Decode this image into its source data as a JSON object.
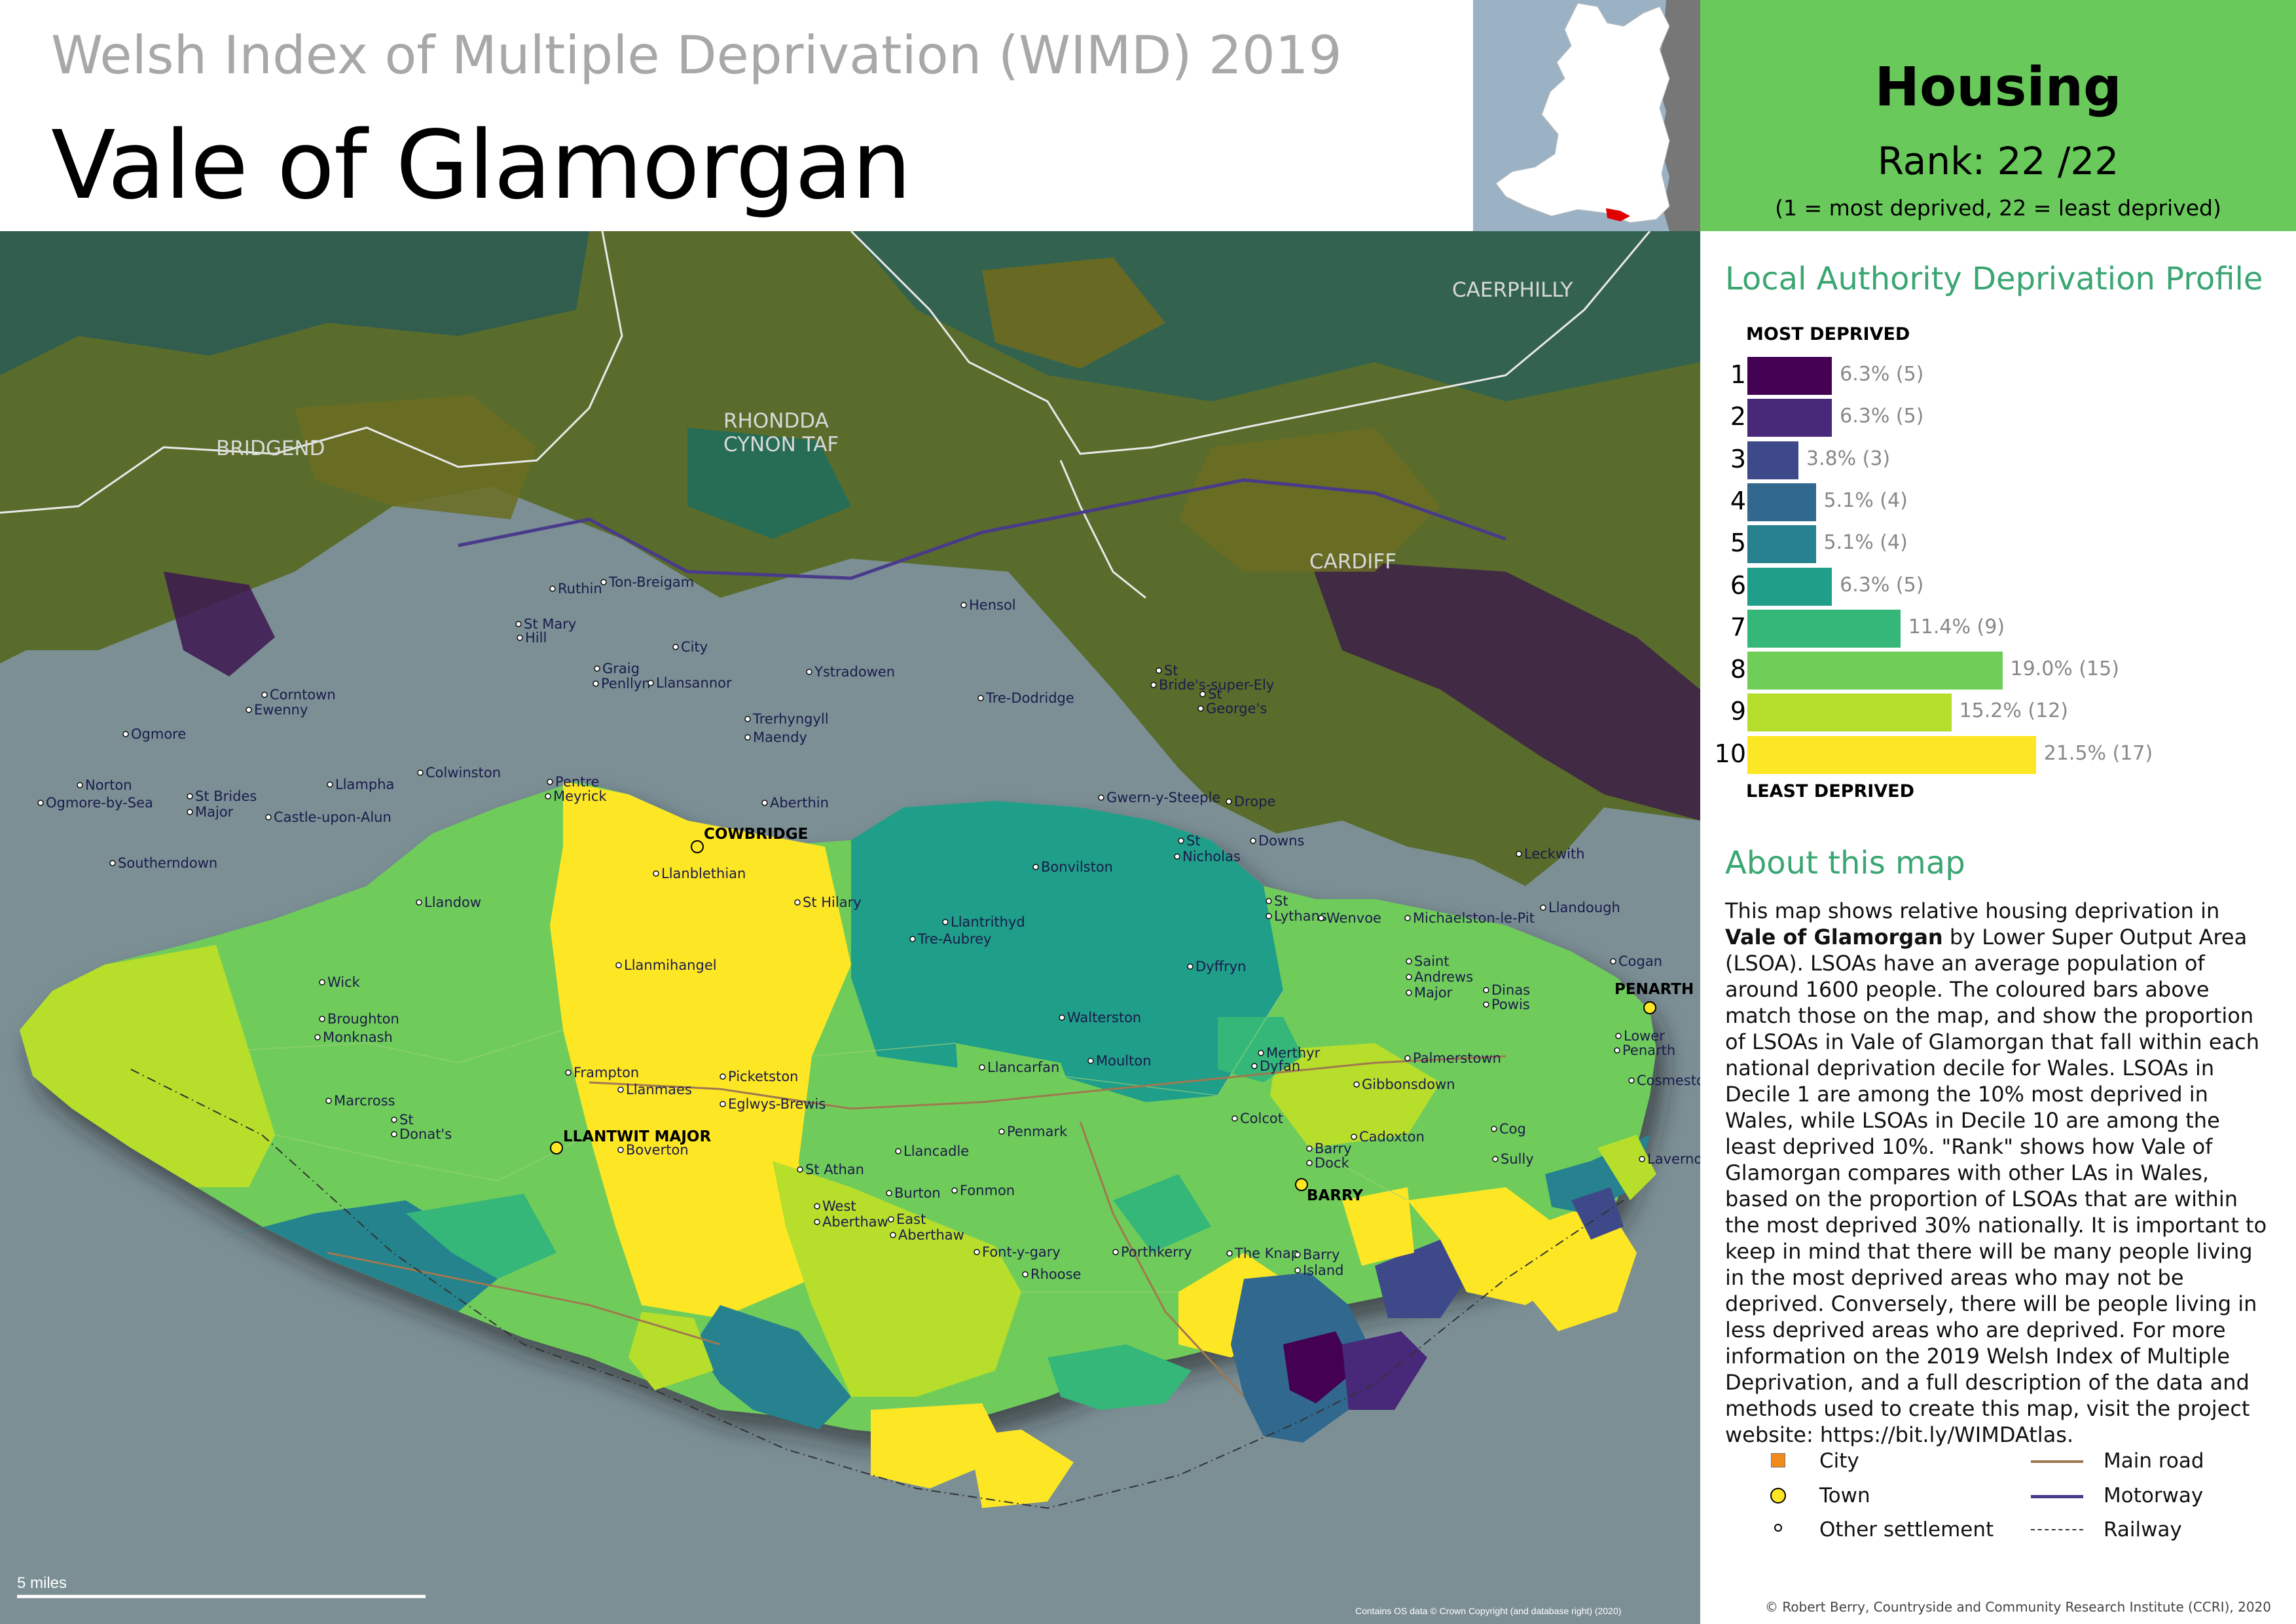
{
  "header": {
    "supertitle": "Welsh Index of Multiple Deprivation (WIMD) 2019",
    "title": "Vale of Glamorgan"
  },
  "topic": {
    "name": "Housing",
    "rank_label": "Rank: 22 /22",
    "rank_note": "(1 =   most deprived, 22 = least deprived)"
  },
  "profile": {
    "title": "Local Authority Deprivation Profile",
    "top_label": "MOST DEPRIVED",
    "bottom_label": "LEAST DEPRIVED",
    "deciles": [
      {
        "decile": "1",
        "percent": 6.3,
        "count": 5,
        "label": "6.3% (5)",
        "color": "#440154"
      },
      {
        "decile": "2",
        "percent": 6.3,
        "count": 5,
        "label": "6.3% (5)",
        "color": "#482878"
      },
      {
        "decile": "3",
        "percent": 3.8,
        "count": 3,
        "label": "3.8% (3)",
        "color": "#3e4989"
      },
      {
        "decile": "4",
        "percent": 5.1,
        "count": 4,
        "label": "5.1% (4)",
        "color": "#31688e"
      },
      {
        "decile": "5",
        "percent": 5.1,
        "count": 4,
        "label": "5.1% (4)",
        "color": "#26828e"
      },
      {
        "decile": "6",
        "percent": 6.3,
        "count": 5,
        "label": "6.3% (5)",
        "color": "#1f9e89"
      },
      {
        "decile": "7",
        "percent": 11.4,
        "count": 9,
        "label": "11.4% (9)",
        "color": "#35b779"
      },
      {
        "decile": "8",
        "percent": 19.0,
        "count": 15,
        "label": "19.0% (15)",
        "color": "#6ece58"
      },
      {
        "decile": "9",
        "percent": 15.2,
        "count": 12,
        "label": "15.2% (12)",
        "color": "#b5de2b"
      },
      {
        "decile": "10",
        "percent": 21.5,
        "count": 17,
        "label": "21.5% (17)",
        "color": "#fde725"
      }
    ]
  },
  "about": {
    "title": "About this map",
    "text_1": "This map shows relative housing deprivation in ",
    "area_1": "Vale of Glamorgan",
    "text_2": " by Lower Super Output Area (LSOA). LSOAs have an average population of around 1600 people. The coloured bars above match those on the map, and show the proportion of LSOAs in Vale of Glamorgan that fall within each national deprivation decile for Wales. LSOAs in Decile 1 are among the 10% most deprived in Wales, while LSOAs in Decile 10 are among the least deprived 10%. \"Rank\" shows how Vale of Glamorgan compares with other LAs in Wales, based on the proportion of LSOAs that are within the most deprived 30% nationally. It is important to keep in mind that there will be many people living in the most deprived areas who may not be deprived. Conversely, there will be people living in less deprived areas who are deprived. For more information on the 2019 Welsh Index of Multiple Deprivation, and a full description of the data and methods used to create this map, visit the project website: https://bit.ly/WIMDAtlas."
  },
  "legend": {
    "city": "City",
    "town": "Town",
    "other": "Other settlement",
    "main_road": "Main road",
    "motorway": "Motorway",
    "railway": "Railway"
  },
  "map": {
    "scale_label": "5 miles",
    "os_credit": "Contains OS data © Crown Copyright (and database right) (2020)",
    "neighbours": [
      "BRIDGEND",
      "RHONDDA",
      "CYNON TAF",
      "CAERPHILLY",
      "CARDIFF"
    ],
    "towns": [
      "COWBRIDGE",
      "LLANTWIT MAJOR",
      "BARRY",
      "PENARTH"
    ],
    "settlements": [
      "Ruthin",
      "Ton-Breigam",
      "St Mary",
      "Hill",
      "City",
      "Graig",
      "Penllyn",
      "Llansannor",
      "Ystradowen",
      "Hensol",
      "Trerhyngyll",
      "Maendy",
      "Tre-Dodridge",
      "St",
      "Bride's-super-Ely",
      "St",
      "George's",
      "Corntown",
      "Ewenny",
      "Ogmore",
      "Norton",
      "Ogmore-by-Sea",
      "St Brides",
      "Major",
      "Llampha",
      "Colwinston",
      "Pentre",
      "Meyrick",
      "Aberthin",
      "Castle-upon-Alun",
      "Southerndown",
      "Llanblethian",
      "Gwern-y-Steeple",
      "Drope",
      "St",
      "Nicholas",
      "Downs",
      "Bonvilston",
      "Leckwith",
      "Llandough",
      "Llandow",
      "St Hilary",
      "Llantrithyd",
      "Tre-Aubrey",
      "St",
      "Lythans",
      "Wenvoe",
      "Michaelston-le-Pit",
      "Cogan",
      "Llanmihangel",
      "Dyffryn",
      "Saint",
      "Andrews",
      "Major",
      "Dinas",
      "Powis",
      "Wick",
      "Broughton",
      "Monknash",
      "Walterston",
      "Lower",
      "Penarth",
      "Frampton",
      "Llanmaes",
      "Picketston",
      "Llancarfan",
      "Moulton",
      "Merthyr",
      "Dyfan",
      "Gibbonsdown",
      "Palmerstown",
      "Cosmeston",
      "Marcross",
      "Eglwys-Brewis",
      "Colcot",
      "St",
      "Donat's",
      "Boverton",
      "Penmark",
      "Cadoxton",
      "Cog",
      "Barry",
      "Dock",
      "Sully",
      "Lavernock",
      "Llancadle",
      "St Athan",
      "Fonmon",
      "Burton",
      "West",
      "Aberthaw",
      "East",
      "Aberthaw",
      "Font-y-gary",
      "Porthkerry",
      "The Knap",
      "Barry",
      "Island",
      "Rhoose"
    ]
  },
  "credit": "© Robert Berry, Countryside and Community Research Institute (CCRI), 2020"
}
